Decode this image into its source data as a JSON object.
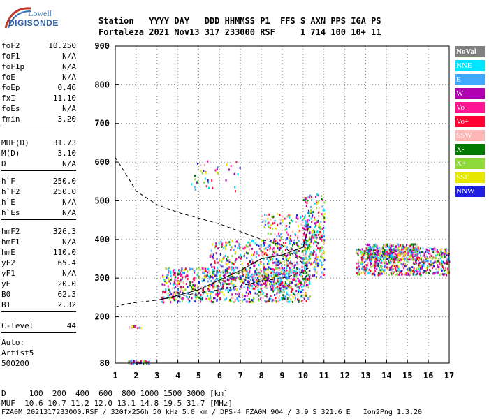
{
  "logo": {
    "line1": "Lowell",
    "line2": "DIGISONDE"
  },
  "header": {
    "line1": "Station   YYYY DAY   DDD HHMMSS P1  FFS S AXN PPS IGA PS",
    "line2": "Fortaleza 2021 Nov13 317 233000 RSF     1 714 100 10+ 11"
  },
  "params_group1": [
    {
      "name": "foF2",
      "value": "10.250"
    },
    {
      "name": "foF1",
      "value": "N/A"
    },
    {
      "name": "foF1p",
      "value": "N/A"
    },
    {
      "name": "foE",
      "value": "N/A"
    },
    {
      "name": "foEp",
      "value": "0.46"
    },
    {
      "name": "fxI",
      "value": "11.10"
    },
    {
      "name": "foEs",
      "value": "N/A"
    },
    {
      "name": "fmin",
      "value": "3.20"
    }
  ],
  "params_group2": [
    {
      "name": "MUF(D)",
      "value": "31.73"
    },
    {
      "name": "M(D)",
      "value": "3.10"
    },
    {
      "name": "D",
      "value": "N/A"
    }
  ],
  "params_group3": [
    {
      "name": "h`F",
      "value": "250.0"
    },
    {
      "name": "h`F2",
      "value": "250.0"
    },
    {
      "name": "h`E",
      "value": "N/A"
    },
    {
      "name": "h`Es",
      "value": "N/A"
    }
  ],
  "params_group4": [
    {
      "name": "hmF2",
      "value": "326.3"
    },
    {
      "name": "hmF1",
      "value": "N/A"
    },
    {
      "name": "hmE",
      "value": "110.0"
    },
    {
      "name": "yF2",
      "value": "65.4"
    },
    {
      "name": "yF1",
      "value": "N/A"
    },
    {
      "name": "yE",
      "value": "20.0"
    },
    {
      "name": "B0",
      "value": "62.3"
    },
    {
      "name": "B1",
      "value": "2.32"
    }
  ],
  "params_group5": [
    {
      "name": "C-level",
      "value": "44"
    }
  ],
  "autoscaling": {
    "line1": "Auto:",
    "line2": "Artist5",
    "line3": "500200"
  },
  "legend": [
    {
      "label": "NoVal",
      "color": "#808080"
    },
    {
      "label": "NNE",
      "color": "#00e5ff"
    },
    {
      "label": "E",
      "color": "#3fa9ff"
    },
    {
      "label": "W",
      "color": "#b000b0"
    },
    {
      "label": "Vo-",
      "color": "#ff1493"
    },
    {
      "label": "Vo+",
      "color": "#ff0030"
    },
    {
      "label": "SSW",
      "color": "#ffb6b6"
    },
    {
      "label": "X-",
      "color": "#007a00"
    },
    {
      "label": "X+",
      "color": "#8ed93a"
    },
    {
      "label": "SSE",
      "color": "#e6e600"
    },
    {
      "label": "NNW",
      "color": "#2020e0"
    }
  ],
  "footer": {
    "line1": "D     100  200  400  600  800 1000 1500 3000 [km]",
    "line2": "MUF  10.6 10.7 11.2 12.0 13.1 14.8 19.5 31.7 [MHz]",
    "line3": "FZA0M_2021317233000.RSF / 320fx256h 50 kHz 5.0 km / DPS-4 FZA0M 904 / 3.9 S 321.6 E   Ion2Png 1.3.20"
  },
  "chart_data": {
    "type": "scatter",
    "xlim": [
      1,
      17
    ],
    "ylim": [
      80,
      900
    ],
    "x_ticks": [
      "1",
      "2",
      "3",
      "4",
      "5",
      "6",
      "7",
      "8",
      "9",
      "10",
      "11",
      "12",
      "13",
      "14",
      "15",
      "16",
      "17"
    ],
    "y_ticks": [
      "80",
      "200",
      "300",
      "400",
      "500",
      "600",
      "700",
      "800",
      "900"
    ],
    "grid": "dotted",
    "traces": {
      "profile_dashed": {
        "x": [
          1.0,
          1.5,
          2.0,
          3.0,
          4.0,
          5.0,
          6.0,
          7.0,
          8.0,
          9.0,
          10.25
        ],
        "y": [
          612,
          570,
          525,
          490,
          470,
          455,
          440,
          420,
          400,
          385,
          326
        ]
      },
      "trace_lower_dashed": {
        "x": [
          1.0,
          1.5,
          2.0,
          3.0,
          3.2,
          4.0,
          5.0,
          6.0,
          7.0,
          8.0,
          9.0,
          10.0,
          10.25
        ],
        "y": [
          225,
          233,
          237,
          243,
          245,
          252,
          262,
          270,
          280,
          292,
          300,
          315,
          326
        ]
      },
      "trace_upper_solid": {
        "x": [
          3.2,
          4.0,
          5.0,
          6.0,
          7.0,
          8.0,
          9.0,
          9.5,
          10.0,
          10.25
        ],
        "y": [
          245,
          255,
          270,
          295,
          320,
          350,
          360,
          370,
          380,
          430
        ]
      }
    }
  }
}
